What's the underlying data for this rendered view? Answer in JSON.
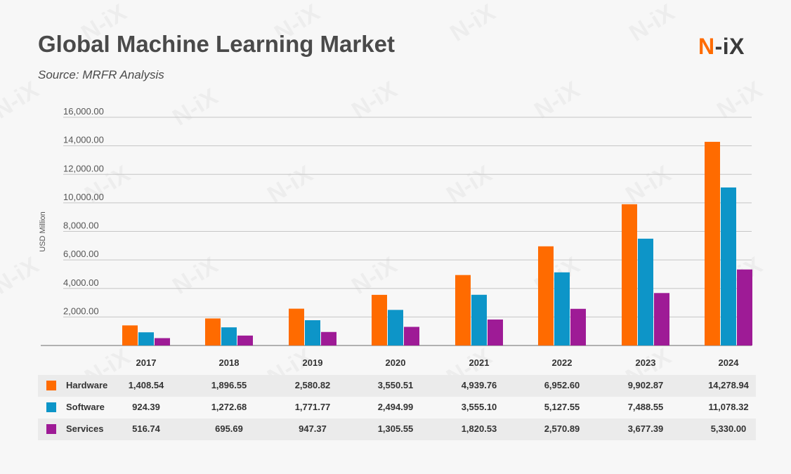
{
  "title": "Global Machine Learning Market",
  "subtitle": "Source: MRFR Analysis",
  "logo": {
    "part1": "N",
    "part2": "-iX"
  },
  "watermark": "N-iX",
  "colors": {
    "Hardware": "#ff6b00",
    "Software": "#0d95c8",
    "Services": "#9e1b96",
    "logo_orange": "#ff6b00",
    "logo_dark": "#3a3a3a"
  },
  "chart_data": {
    "type": "bar",
    "title": "Global Machine Learning Market",
    "subtitle": "Source: MRFR Analysis",
    "xlabel": "",
    "ylabel": "USD Million",
    "ylim": [
      0,
      16000
    ],
    "yticks": [
      "2,000.00",
      "4,000.00",
      "6,000.00",
      "8,000.00",
      "10,000.00",
      "12,000.00",
      "14,000.00",
      "16,000.00"
    ],
    "grid": true,
    "legend": "table-below",
    "categories": [
      "2017",
      "2018",
      "2019",
      "2020",
      "2021",
      "2022",
      "2023",
      "2024"
    ],
    "series": [
      {
        "name": "Hardware",
        "values": [
          1408.54,
          1896.55,
          2580.82,
          3550.51,
          4939.76,
          6952.6,
          9902.87,
          14278.94
        ],
        "labels": [
          "1,408.54",
          "1,896.55",
          "2,580.82",
          "3,550.51",
          "4,939.76",
          "6,952.60",
          "9,902.87",
          "14,278.94"
        ]
      },
      {
        "name": "Software",
        "values": [
          924.39,
          1272.68,
          1771.77,
          2494.99,
          3555.1,
          5127.55,
          7488.55,
          11078.32
        ],
        "labels": [
          "924.39",
          "1,272.68",
          "1,771.77",
          "2,494.99",
          "3,555.10",
          "5,127.55",
          "7,488.55",
          "11,078.32"
        ]
      },
      {
        "name": "Services",
        "values": [
          516.74,
          695.69,
          947.37,
          1305.55,
          1820.53,
          2570.89,
          3677.39,
          5330.0
        ],
        "labels": [
          "516.74",
          "695.69",
          "947.37",
          "1,305.55",
          "1,820.53",
          "2,570.89",
          "3,677.39",
          "5,330.00"
        ]
      }
    ]
  }
}
